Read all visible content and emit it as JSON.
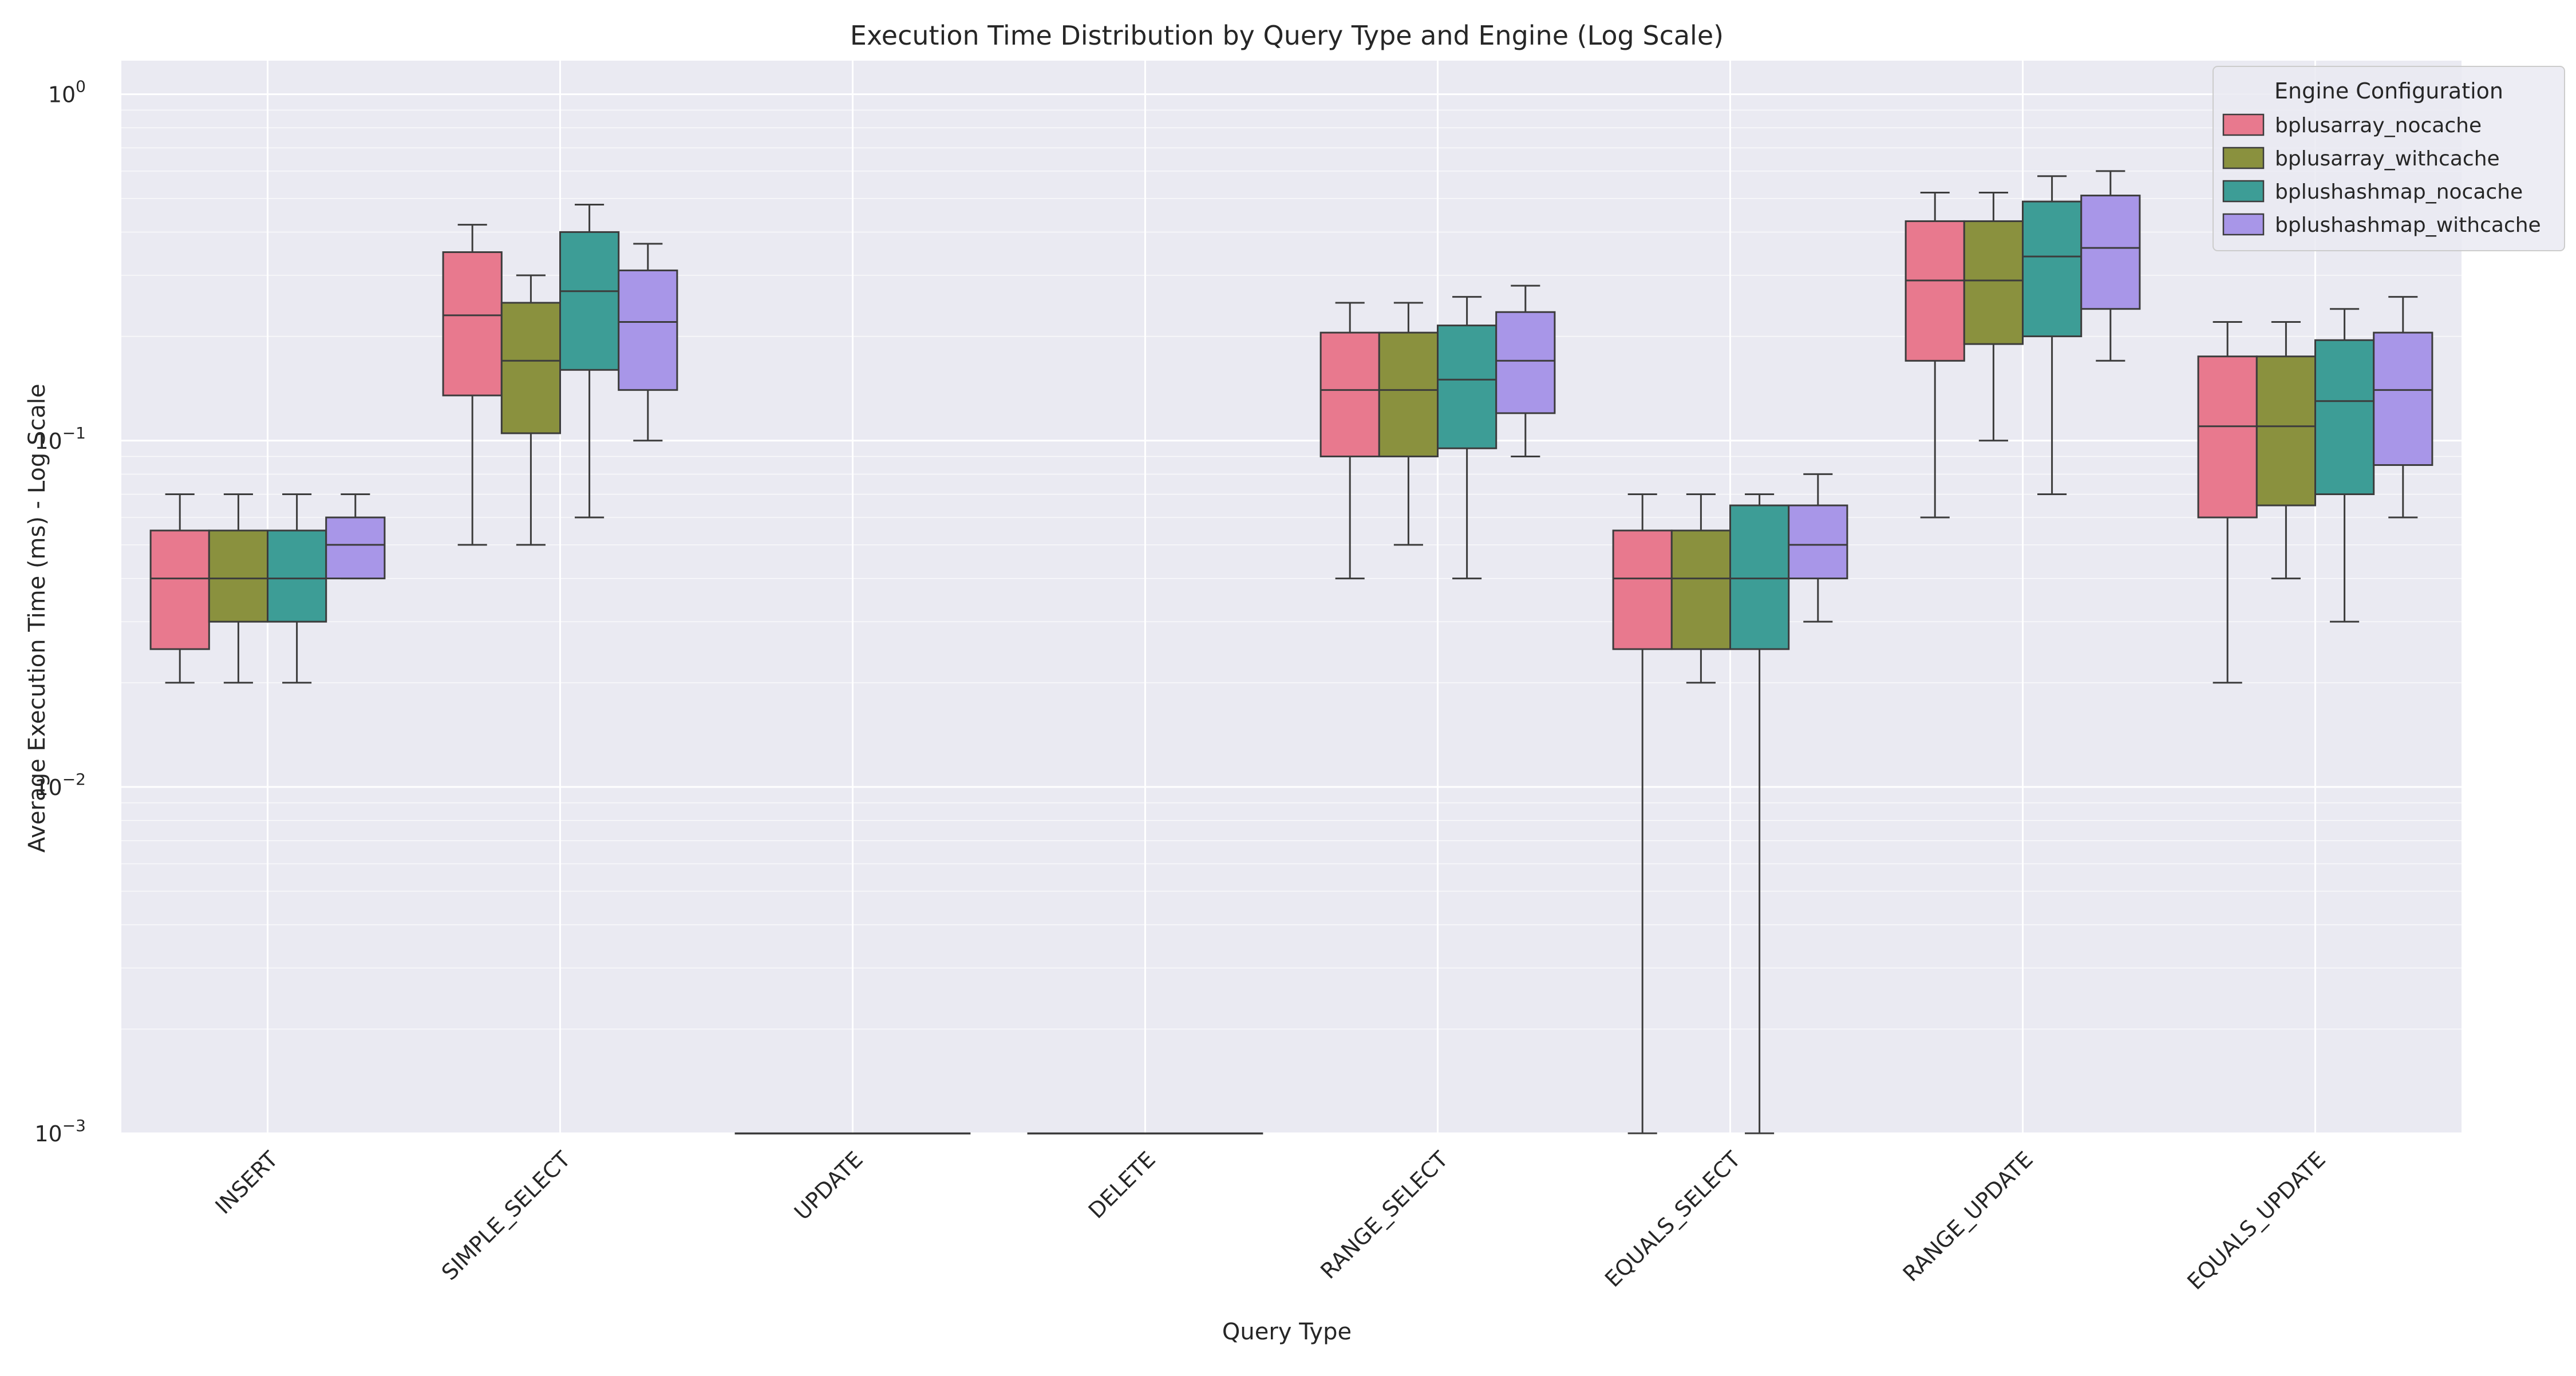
{
  "chart_data": {
    "type": "box",
    "title": "Execution Time Distribution by Query Type and Engine (Log Scale)",
    "xlabel": "Query Type",
    "ylabel": "Average Execution Time (ms) - Log Scale",
    "y_scale": "log",
    "ylim": [
      0.001,
      1.25
    ],
    "y_ticks": [
      {
        "value": 0.001,
        "base": "10",
        "exp": "−3"
      },
      {
        "value": 0.01,
        "base": "10",
        "exp": "−2"
      },
      {
        "value": 0.1,
        "base": "10",
        "exp": "−1"
      },
      {
        "value": 1,
        "base": "10",
        "exp": "0"
      }
    ],
    "grid": true,
    "legend_title": "Engine Configuration",
    "legend_position": "top-right",
    "categories": [
      "INSERT",
      "SIMPLE_SELECT",
      "UPDATE",
      "DELETE",
      "RANGE_SELECT",
      "EQUALS_SELECT",
      "RANGE_UPDATE",
      "EQUALS_UPDATE"
    ],
    "series": [
      {
        "name": "bplusarray_nocache",
        "color": "#e8798e",
        "boxes": [
          {
            "whisker_low": 0.02,
            "q1": 0.025,
            "median": 0.04,
            "q3": 0.055,
            "whisker_high": 0.07
          },
          {
            "whisker_low": 0.05,
            "q1": 0.135,
            "median": 0.23,
            "q3": 0.35,
            "whisker_high": 0.42
          },
          {
            "whisker_low": 0.001,
            "q1": 0.001,
            "median": 0.001,
            "q3": 0.001,
            "whisker_high": 0.001
          },
          {
            "whisker_low": 0.001,
            "q1": 0.001,
            "median": 0.001,
            "q3": 0.001,
            "whisker_high": 0.001
          },
          {
            "whisker_low": 0.04,
            "q1": 0.09,
            "median": 0.14,
            "q3": 0.205,
            "whisker_high": 0.25
          },
          {
            "whisker_low": 0.001,
            "q1": 0.025,
            "median": 0.04,
            "q3": 0.055,
            "whisker_high": 0.07
          },
          {
            "whisker_low": 0.06,
            "q1": 0.17,
            "median": 0.29,
            "q3": 0.43,
            "whisker_high": 0.52
          },
          {
            "whisker_low": 0.02,
            "q1": 0.06,
            "median": 0.11,
            "q3": 0.175,
            "whisker_high": 0.22
          }
        ]
      },
      {
        "name": "bplusarray_withcache",
        "color": "#8a913e",
        "boxes": [
          {
            "whisker_low": 0.02,
            "q1": 0.03,
            "median": 0.04,
            "q3": 0.055,
            "whisker_high": 0.07
          },
          {
            "whisker_low": 0.05,
            "q1": 0.105,
            "median": 0.17,
            "q3": 0.25,
            "whisker_high": 0.3
          },
          {
            "whisker_low": 0.001,
            "q1": 0.001,
            "median": 0.001,
            "q3": 0.001,
            "whisker_high": 0.001
          },
          {
            "whisker_low": 0.001,
            "q1": 0.001,
            "median": 0.001,
            "q3": 0.001,
            "whisker_high": 0.001
          },
          {
            "whisker_low": 0.05,
            "q1": 0.09,
            "median": 0.14,
            "q3": 0.205,
            "whisker_high": 0.25
          },
          {
            "whisker_low": 0.02,
            "q1": 0.025,
            "median": 0.04,
            "q3": 0.055,
            "whisker_high": 0.07
          },
          {
            "whisker_low": 0.1,
            "q1": 0.19,
            "median": 0.29,
            "q3": 0.43,
            "whisker_high": 0.52
          },
          {
            "whisker_low": 0.04,
            "q1": 0.065,
            "median": 0.11,
            "q3": 0.175,
            "whisker_high": 0.22
          }
        ]
      },
      {
        "name": "bplushashmap_nocache",
        "color": "#3d9d96",
        "boxes": [
          {
            "whisker_low": 0.02,
            "q1": 0.03,
            "median": 0.04,
            "q3": 0.055,
            "whisker_high": 0.07
          },
          {
            "whisker_low": 0.06,
            "q1": 0.16,
            "median": 0.27,
            "q3": 0.4,
            "whisker_high": 0.48
          },
          {
            "whisker_low": 0.001,
            "q1": 0.001,
            "median": 0.001,
            "q3": 0.001,
            "whisker_high": 0.001
          },
          {
            "whisker_low": 0.001,
            "q1": 0.001,
            "median": 0.001,
            "q3": 0.001,
            "whisker_high": 0.001
          },
          {
            "whisker_low": 0.04,
            "q1": 0.095,
            "median": 0.15,
            "q3": 0.215,
            "whisker_high": 0.26
          },
          {
            "whisker_low": 0.001,
            "q1": 0.025,
            "median": 0.04,
            "q3": 0.065,
            "whisker_high": 0.07
          },
          {
            "whisker_low": 0.07,
            "q1": 0.2,
            "median": 0.34,
            "q3": 0.49,
            "whisker_high": 0.58
          },
          {
            "whisker_low": 0.03,
            "q1": 0.07,
            "median": 0.13,
            "q3": 0.195,
            "whisker_high": 0.24
          }
        ]
      },
      {
        "name": "bplushashmap_withcache",
        "color": "#a896e8",
        "boxes": [
          {
            "whisker_low": 0.04,
            "q1": 0.04,
            "median": 0.05,
            "q3": 0.06,
            "whisker_high": 0.07
          },
          {
            "whisker_low": 0.1,
            "q1": 0.14,
            "median": 0.22,
            "q3": 0.31,
            "whisker_high": 0.37
          },
          {
            "whisker_low": 0.001,
            "q1": 0.001,
            "median": 0.001,
            "q3": 0.001,
            "whisker_high": 0.001
          },
          {
            "whisker_low": 0.001,
            "q1": 0.001,
            "median": 0.001,
            "q3": 0.001,
            "whisker_high": 0.001
          },
          {
            "whisker_low": 0.09,
            "q1": 0.12,
            "median": 0.17,
            "q3": 0.235,
            "whisker_high": 0.28
          },
          {
            "whisker_low": 0.03,
            "q1": 0.04,
            "median": 0.05,
            "q3": 0.065,
            "whisker_high": 0.08
          },
          {
            "whisker_low": 0.17,
            "q1": 0.24,
            "median": 0.36,
            "q3": 0.51,
            "whisker_high": 0.6
          },
          {
            "whisker_low": 0.06,
            "q1": 0.085,
            "median": 0.14,
            "q3": 0.205,
            "whisker_high": 0.26
          }
        ]
      }
    ]
  }
}
